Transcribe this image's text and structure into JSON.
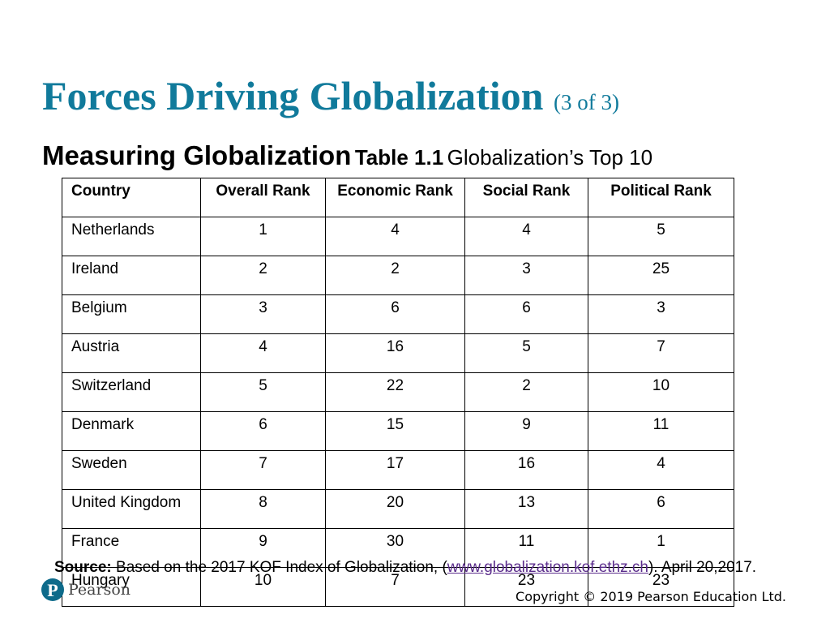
{
  "slide": {
    "title": "Forces Driving Globalization",
    "title_part": "(3 of 3)",
    "subtitle": "Measuring Globalization",
    "table_label": "Table 1.1",
    "table_caption": "Globalization’s Top 10"
  },
  "table": {
    "headers": [
      "Country",
      "Overall Rank",
      "Economic Rank",
      "Social Rank",
      "Political Rank"
    ],
    "rows": [
      [
        "Netherlands",
        "1",
        "4",
        "4",
        "5"
      ],
      [
        "Ireland",
        "2",
        "2",
        "3",
        "25"
      ],
      [
        "Belgium",
        "3",
        "6",
        "6",
        "3"
      ],
      [
        "Austria",
        "4",
        "16",
        "5",
        "7"
      ],
      [
        "Switzerland",
        "5",
        "22",
        "2",
        "10"
      ],
      [
        "Denmark",
        "6",
        "15",
        "9",
        "11"
      ],
      [
        "Sweden",
        "7",
        "17",
        "16",
        "4"
      ],
      [
        "United Kingdom",
        "8",
        "20",
        "13",
        "6"
      ],
      [
        "France",
        "9",
        "30",
        "11",
        "1"
      ],
      [
        "Hungary",
        "10",
        "7",
        "23",
        "23"
      ]
    ]
  },
  "source": {
    "label": "Source:",
    "text_before": "Based on the 2017 KOF Index of Globalization, (",
    "link": "www.globalization.kof.ethz.ch",
    "text_after": "). April 20,2017."
  },
  "footer": {
    "logo_letter": "P",
    "logo_text": "Pearson",
    "copyright": "Copyright © 2019 Pearson Education Ltd."
  },
  "colors": {
    "title": "#107a9b",
    "logo": "#0d6a8a",
    "link": "#5b2d8c"
  }
}
